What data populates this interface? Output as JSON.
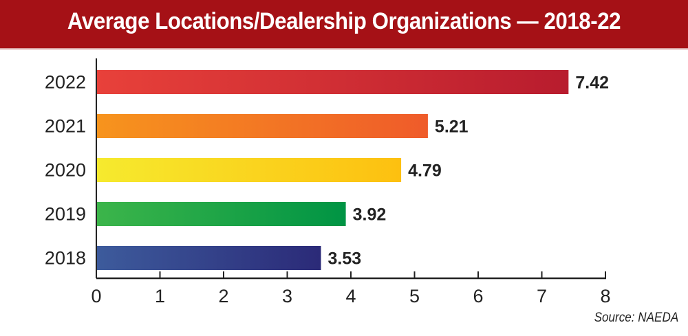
{
  "chart_data": {
    "type": "bar",
    "orientation": "horizontal",
    "title": "Average Locations/Dealership Organizations — 2018-22",
    "categories": [
      "2022",
      "2021",
      "2020",
      "2019",
      "2018"
    ],
    "values": [
      7.42,
      5.21,
      4.79,
      3.92,
      3.53
    ],
    "value_labels": [
      "7.42",
      "5.21",
      "4.79",
      "3.92",
      "3.53"
    ],
    "colors": [
      [
        "#e8413a",
        "#b81c2e"
      ],
      [
        "#f7941d",
        "#ef5b2a"
      ],
      [
        "#f6ea2e",
        "#fdc010"
      ],
      [
        "#3cb54a",
        "#009444"
      ],
      [
        "#3d5b9c",
        "#2b2a78"
      ]
    ],
    "xlim": [
      0,
      8
    ],
    "xticks": [
      "0",
      "1",
      "2",
      "3",
      "4",
      "5",
      "6",
      "7",
      "8"
    ],
    "xlabel": "",
    "ylabel": "",
    "grid": false,
    "source": "Source: NAEDA"
  },
  "header_color": "#a51116"
}
